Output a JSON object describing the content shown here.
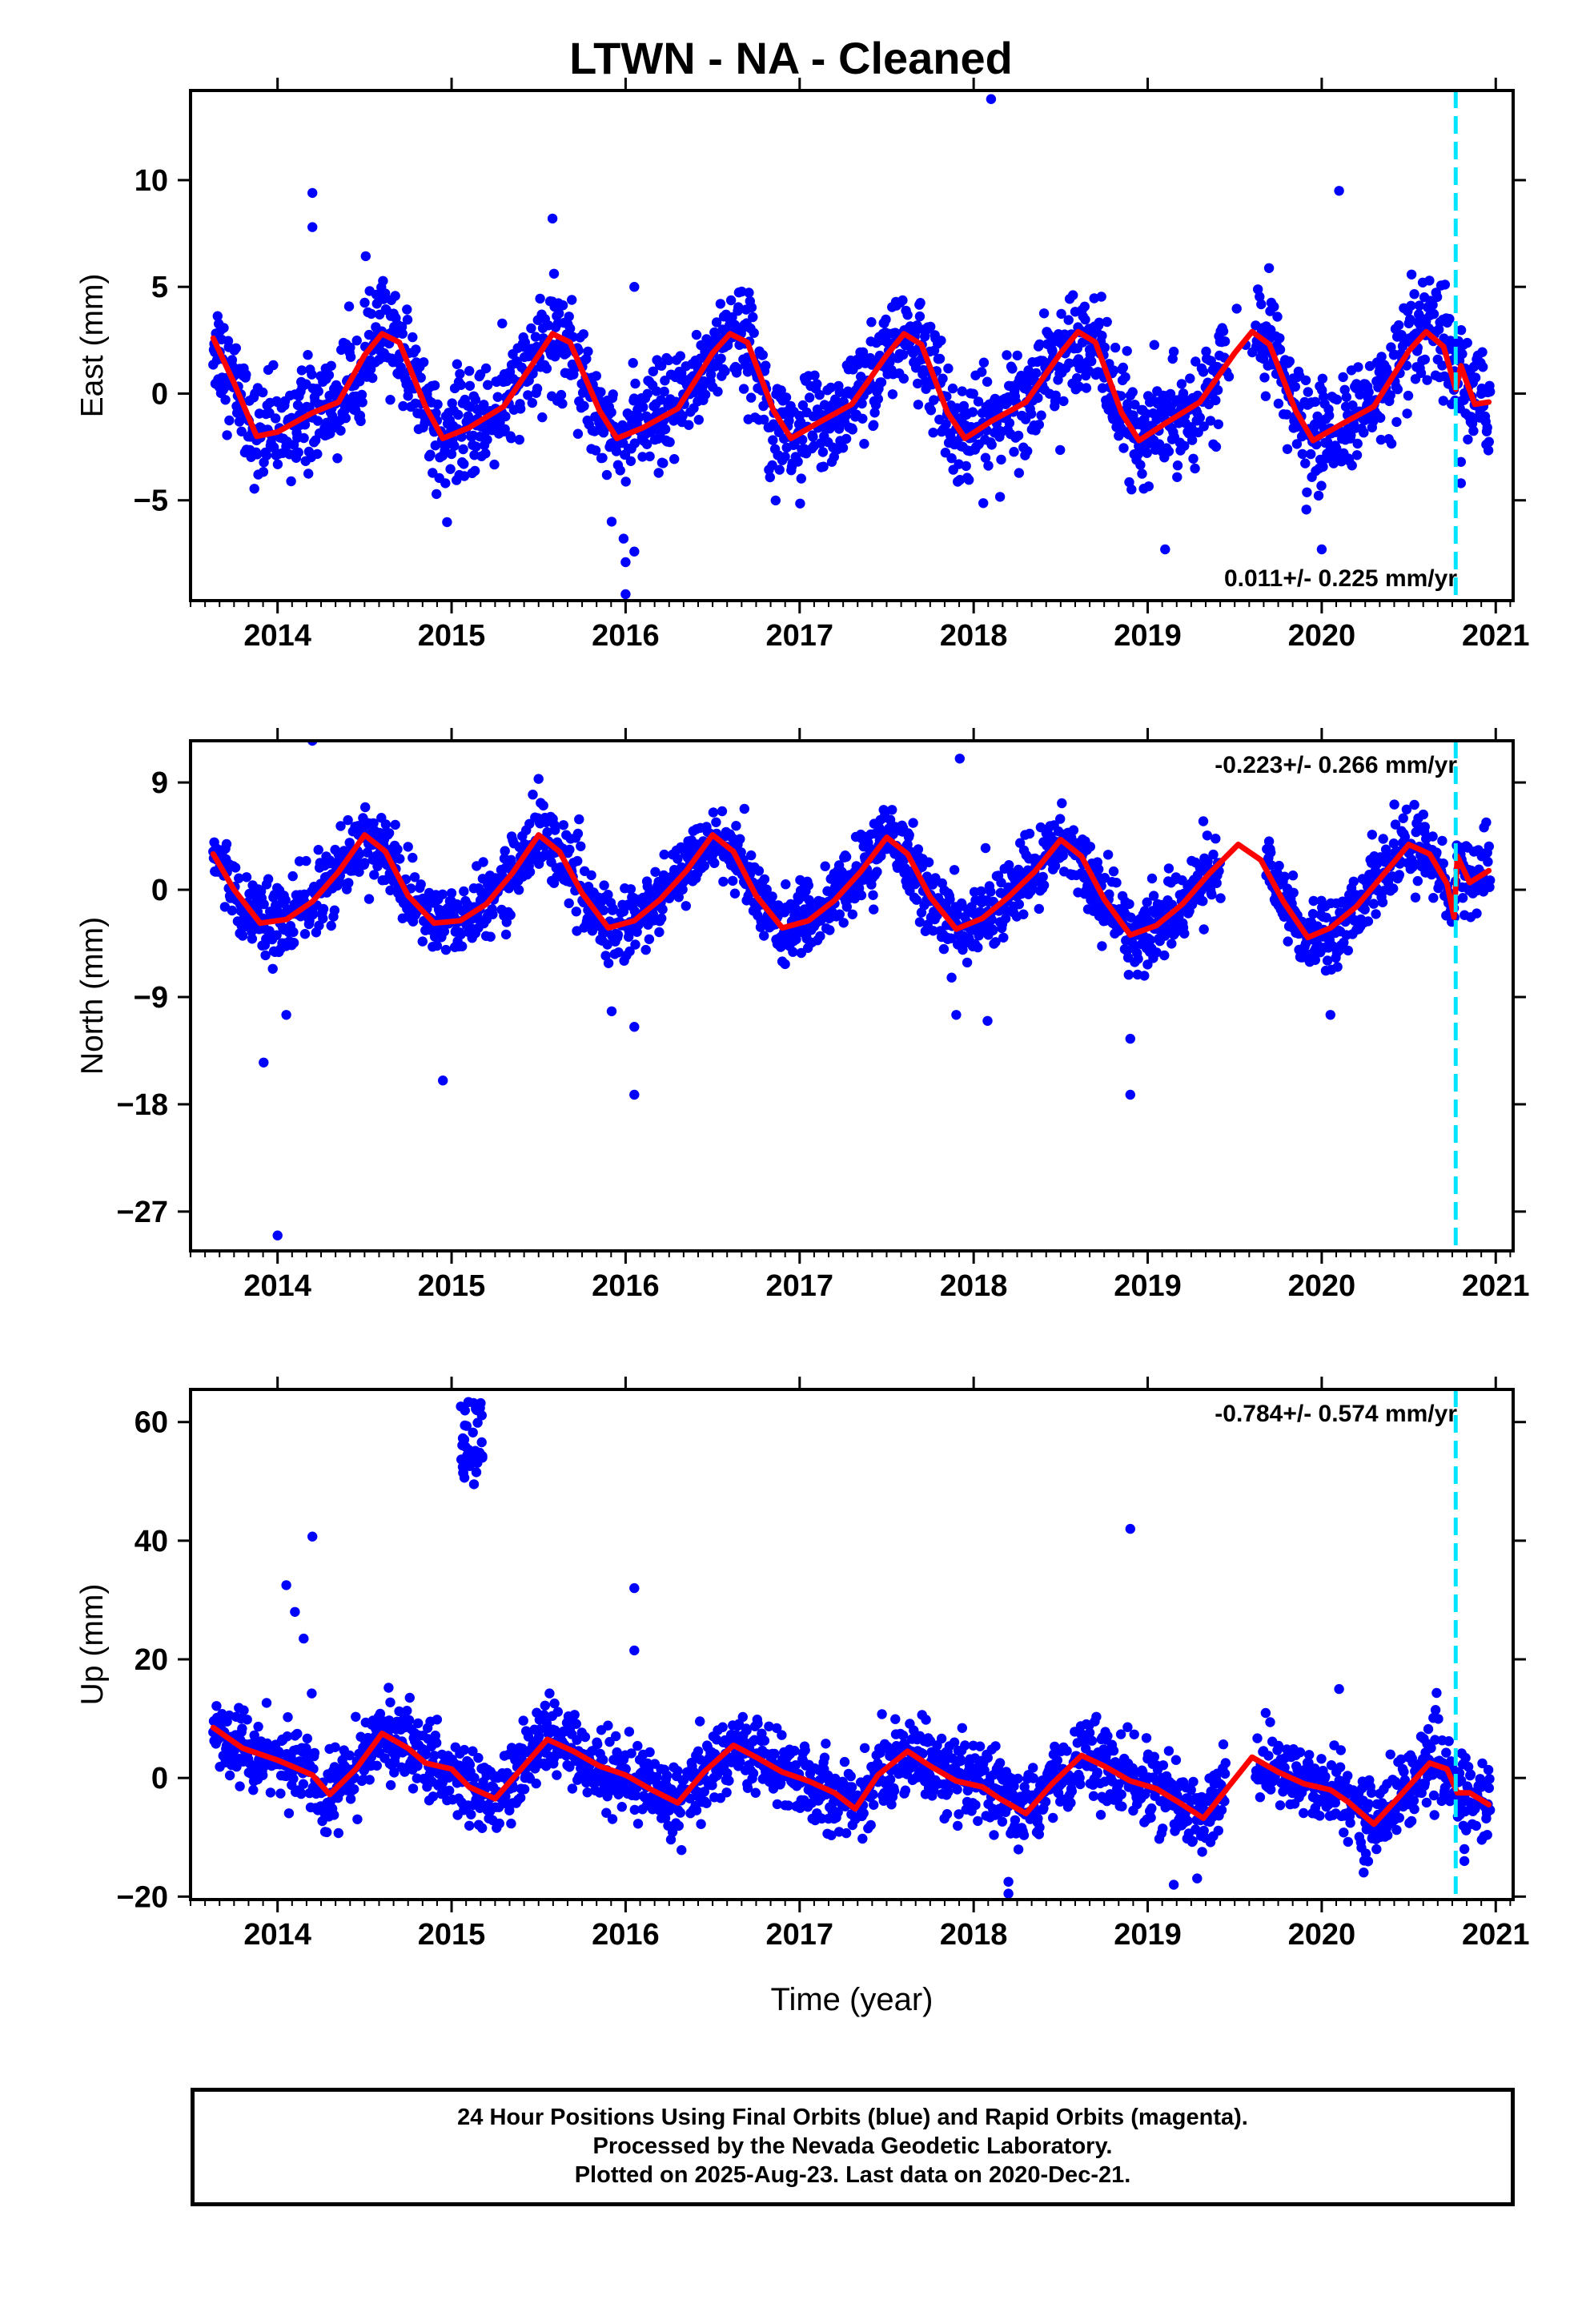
{
  "title": "LTWN  - NA - Cleaned",
  "colors": {
    "final_orbits": "#0000ff",
    "model_fit": "#ff0000",
    "event_line": "#00e5ff",
    "axis": "#000000"
  },
  "footer": {
    "line1": "24 Hour Positions Using Final Orbits (blue) and Rapid Orbits (magenta).",
    "line2": "Processed by the Nevada Geodetic Laboratory.",
    "line3": "Plotted on 2025-Aug-23. Last data on 2020-Dec-21."
  },
  "chart_data": [
    {
      "type": "scatter",
      "name": "east",
      "ylabel": "East (mm)",
      "xlabel": "",
      "xlim": [
        2013.5,
        2021.1
      ],
      "ylim": [
        -9.7,
        14.2
      ],
      "xticks": [
        "2014",
        "2015",
        "2016",
        "2017",
        "2018",
        "2019",
        "2020",
        "2021"
      ],
      "yticks": [
        "10",
        "5",
        "0",
        "−5"
      ],
      "ytick_values": [
        10,
        5,
        0,
        -5
      ],
      "rate_label": "0.011+/- 0.225 mm/yr",
      "rate_label_position": "bottom-right",
      "event_line_x": 2020.77,
      "seasonal": {
        "amplitude": 2.6,
        "peak_phase": 0.58,
        "noise_sd": 1.2
      },
      "fit_curve": [
        [
          2013.63,
          2.6
        ],
        [
          2013.75,
          0.5
        ],
        [
          2013.88,
          -2.0
        ],
        [
          2014.0,
          -1.8
        ],
        [
          2014.2,
          -0.9
        ],
        [
          2014.35,
          -0.4
        ],
        [
          2014.5,
          1.8
        ],
        [
          2014.6,
          2.8
        ],
        [
          2014.7,
          2.4
        ],
        [
          2014.85,
          -0.6
        ],
        [
          2014.95,
          -2.1
        ],
        [
          2015.1,
          -1.6
        ],
        [
          2015.3,
          -0.6
        ],
        [
          2015.5,
          1.8
        ],
        [
          2015.58,
          2.8
        ],
        [
          2015.68,
          2.4
        ],
        [
          2015.85,
          -0.8
        ],
        [
          2015.95,
          -2.1
        ],
        [
          2016.1,
          -1.6
        ],
        [
          2016.3,
          -0.7
        ],
        [
          2016.5,
          1.9
        ],
        [
          2016.6,
          2.8
        ],
        [
          2016.7,
          2.4
        ],
        [
          2016.85,
          -0.8
        ],
        [
          2016.95,
          -2.1
        ],
        [
          2017.1,
          -1.4
        ],
        [
          2017.3,
          -0.5
        ],
        [
          2017.5,
          1.8
        ],
        [
          2017.6,
          2.8
        ],
        [
          2017.7,
          2.3
        ],
        [
          2017.85,
          -0.9
        ],
        [
          2017.95,
          -2.1
        ],
        [
          2018.1,
          -1.3
        ],
        [
          2018.3,
          -0.4
        ],
        [
          2018.5,
          1.9
        ],
        [
          2018.6,
          2.9
        ],
        [
          2018.7,
          2.4
        ],
        [
          2018.85,
          -0.9
        ],
        [
          2018.95,
          -2.2
        ],
        [
          2019.1,
          -1.4
        ],
        [
          2019.3,
          -0.4
        ],
        [
          2019.5,
          1.9
        ],
        [
          2019.6,
          2.9
        ],
        [
          2019.7,
          2.3
        ],
        [
          2019.85,
          -0.8
        ],
        [
          2019.95,
          -2.2
        ],
        [
          2020.1,
          -1.5
        ],
        [
          2020.3,
          -0.6
        ],
        [
          2020.5,
          2.0
        ],
        [
          2020.6,
          2.9
        ],
        [
          2020.7,
          2.2
        ],
        [
          2020.77,
          0.2
        ],
        [
          2020.8,
          1.3
        ],
        [
          2020.83,
          0.6
        ],
        [
          2020.88,
          -0.5
        ],
        [
          2020.96,
          -0.4
        ]
      ],
      "outliers": [
        [
          2014.2,
          9.4
        ],
        [
          2014.2,
          7.8
        ],
        [
          2018.1,
          13.8
        ],
        [
          2020.1,
          9.5
        ],
        [
          2016.0,
          -9.4
        ],
        [
          2016.0,
          -7.9
        ],
        [
          2016.05,
          -7.4
        ],
        [
          2020.0,
          -7.3
        ],
        [
          2019.1,
          -7.3
        ],
        [
          2015.92,
          -6.0
        ],
        [
          2016.05,
          5.0
        ],
        [
          2015.58,
          8.2
        ],
        [
          2020.8,
          -3.2
        ],
        [
          2020.8,
          -4.2
        ]
      ]
    },
    {
      "type": "scatter",
      "name": "north",
      "ylabel": "North (mm)",
      "xlabel": "",
      "xlim": [
        2013.5,
        2021.1
      ],
      "ylim": [
        -30.3,
        12.5
      ],
      "xticks": [
        "2014",
        "2015",
        "2016",
        "2017",
        "2018",
        "2019",
        "2020",
        "2021"
      ],
      "yticks": [
        "9",
        "0",
        "−9",
        "−18",
        "−27"
      ],
      "ytick_values": [
        9,
        0,
        -9,
        -18,
        -27
      ],
      "rate_label": "-0.223+/- 0.266 mm/yr",
      "rate_label_position": "top-right",
      "event_line_x": 2020.77,
      "seasonal": {
        "amplitude": 3.8,
        "peak_phase": 0.52,
        "noise_sd": 1.5
      },
      "fit_curve": [
        [
          2013.63,
          3.0
        ],
        [
          2013.75,
          0.0
        ],
        [
          2013.9,
          -2.8
        ],
        [
          2014.05,
          -2.5
        ],
        [
          2014.2,
          -1.0
        ],
        [
          2014.35,
          1.5
        ],
        [
          2014.5,
          4.6
        ],
        [
          2014.62,
          3.2
        ],
        [
          2014.75,
          -0.5
        ],
        [
          2014.9,
          -2.8
        ],
        [
          2015.05,
          -2.6
        ],
        [
          2015.2,
          -1.2
        ],
        [
          2015.35,
          1.4
        ],
        [
          2015.5,
          4.6
        ],
        [
          2015.62,
          3.2
        ],
        [
          2015.75,
          -0.3
        ],
        [
          2015.9,
          -3.2
        ],
        [
          2016.05,
          -2.6
        ],
        [
          2016.2,
          -0.8
        ],
        [
          2016.35,
          1.6
        ],
        [
          2016.5,
          4.6
        ],
        [
          2016.62,
          3.2
        ],
        [
          2016.75,
          -0.5
        ],
        [
          2016.9,
          -3.2
        ],
        [
          2017.05,
          -2.6
        ],
        [
          2017.2,
          -0.9
        ],
        [
          2017.35,
          1.5
        ],
        [
          2017.5,
          4.4
        ],
        [
          2017.62,
          3.0
        ],
        [
          2017.75,
          -0.6
        ],
        [
          2017.9,
          -3.3
        ],
        [
          2018.05,
          -2.4
        ],
        [
          2018.2,
          -0.6
        ],
        [
          2018.35,
          1.5
        ],
        [
          2018.5,
          4.2
        ],
        [
          2018.62,
          2.8
        ],
        [
          2018.75,
          -0.8
        ],
        [
          2018.9,
          -3.8
        ],
        [
          2019.05,
          -3.0
        ],
        [
          2019.2,
          -1.2
        ],
        [
          2019.35,
          1.3
        ],
        [
          2019.52,
          3.8
        ],
        [
          2019.65,
          2.5
        ],
        [
          2019.78,
          -1.0
        ],
        [
          2019.92,
          -4.0
        ],
        [
          2020.05,
          -3.2
        ],
        [
          2020.2,
          -1.4
        ],
        [
          2020.35,
          1.2
        ],
        [
          2020.5,
          3.8
        ],
        [
          2020.62,
          3.0
        ],
        [
          2020.72,
          0.5
        ],
        [
          2020.76,
          -2.3
        ],
        [
          2020.78,
          2.8
        ],
        [
          2020.85,
          0.6
        ],
        [
          2020.96,
          1.6
        ]
      ],
      "outliers": [
        [
          2014.2,
          12.5
        ],
        [
          2014.0,
          -29.0
        ],
        [
          2013.92,
          -14.5
        ],
        [
          2014.05,
          -10.5
        ],
        [
          2014.95,
          -16.0
        ],
        [
          2016.05,
          -17.2
        ],
        [
          2016.05,
          -11.5
        ],
        [
          2015.92,
          -10.2
        ],
        [
          2018.9,
          -17.2
        ],
        [
          2018.9,
          -12.5
        ],
        [
          2018.08,
          -11.0
        ],
        [
          2017.9,
          -10.5
        ],
        [
          2020.05,
          -10.5
        ],
        [
          2015.5,
          9.3
        ],
        [
          2017.92,
          11.0
        ]
      ]
    },
    {
      "type": "scatter",
      "name": "up",
      "ylabel": "Up (mm)",
      "xlabel": "Time (year)",
      "xlim": [
        2013.5,
        2021.1
      ],
      "ylim": [
        -20.5,
        65.5
      ],
      "xticks": [
        "2014",
        "2015",
        "2016",
        "2017",
        "2018",
        "2019",
        "2020",
        "2021"
      ],
      "yticks": [
        "60",
        "40",
        "20",
        "0",
        "−20"
      ],
      "ytick_values": [
        60,
        40,
        20,
        0,
        -20
      ],
      "rate_label": "-0.784+/- 0.574 mm/yr",
      "rate_label_position": "top-right",
      "event_line_x": 2020.77,
      "seasonal": {
        "amplitude": 4.8,
        "peak_phase": 0.62,
        "noise_sd": 3.2
      },
      "fit_curve": [
        [
          2013.63,
          8.5
        ],
        [
          2013.8,
          5.0
        ],
        [
          2014.0,
          3.0
        ],
        [
          2014.2,
          0.5
        ],
        [
          2014.3,
          -2.8
        ],
        [
          2014.45,
          1.5
        ],
        [
          2014.6,
          7.5
        ],
        [
          2014.75,
          5.0
        ],
        [
          2014.85,
          2.5
        ],
        [
          2015.0,
          1.5
        ],
        [
          2015.1,
          -1.5
        ],
        [
          2015.25,
          -3.5
        ],
        [
          2015.4,
          1.5
        ],
        [
          2015.55,
          6.5
        ],
        [
          2015.7,
          4.5
        ],
        [
          2015.85,
          2.0
        ],
        [
          2016.0,
          0.5
        ],
        [
          2016.15,
          -2.0
        ],
        [
          2016.3,
          -4.2
        ],
        [
          2016.45,
          1.0
        ],
        [
          2016.62,
          5.5
        ],
        [
          2016.75,
          3.5
        ],
        [
          2016.9,
          1.0
        ],
        [
          2017.05,
          -0.5
        ],
        [
          2017.2,
          -2.5
        ],
        [
          2017.32,
          -5.2
        ],
        [
          2017.45,
          0.5
        ],
        [
          2017.62,
          4.5
        ],
        [
          2017.75,
          2.0
        ],
        [
          2017.9,
          -0.5
        ],
        [
          2018.05,
          -1.5
        ],
        [
          2018.15,
          -3.5
        ],
        [
          2018.3,
          -6.0
        ],
        [
          2018.45,
          -1.0
        ],
        [
          2018.62,
          3.8
        ],
        [
          2018.75,
          2.0
        ],
        [
          2018.9,
          -0.5
        ],
        [
          2019.05,
          -1.8
        ],
        [
          2019.2,
          -4.5
        ],
        [
          2019.32,
          -6.8
        ],
        [
          2019.45,
          -2.0
        ],
        [
          2019.6,
          3.5
        ],
        [
          2019.75,
          1.0
        ],
        [
          2019.9,
          -1.0
        ],
        [
          2020.05,
          -2.0
        ],
        [
          2020.15,
          -4.0
        ],
        [
          2020.3,
          -7.8
        ],
        [
          2020.45,
          -3.0
        ],
        [
          2020.62,
          2.5
        ],
        [
          2020.72,
          1.5
        ],
        [
          2020.78,
          -2.5
        ],
        [
          2020.85,
          -2.5
        ],
        [
          2020.96,
          -4.5
        ]
      ],
      "outliers": [
        [
          2014.05,
          32.5
        ],
        [
          2014.2,
          40.7
        ],
        [
          2014.1,
          28.0
        ],
        [
          2014.15,
          23.5
        ],
        [
          2016.05,
          32.0
        ],
        [
          2016.05,
          21.5
        ],
        [
          2018.9,
          42.0
        ],
        [
          2020.1,
          15.0
        ],
        [
          2018.2,
          -19.5
        ],
        [
          2018.2,
          -17.5
        ],
        [
          2019.15,
          -18.0
        ],
        [
          2020.82,
          -12.0
        ],
        [
          2020.82,
          -14.0
        ]
      ],
      "cluster": {
        "x_range": [
          2015.05,
          2015.18
        ],
        "y_range": [
          49.5,
          63.5
        ],
        "count": 40
      }
    }
  ]
}
